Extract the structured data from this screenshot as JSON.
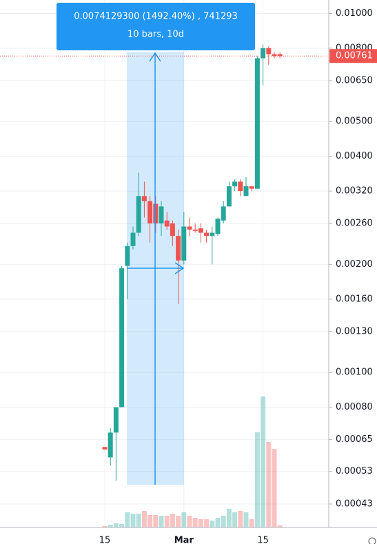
{
  "chart_data": {
    "type": "candlestick",
    "categories": [
      "15",
      null,
      null,
      null,
      null,
      null,
      null,
      null,
      null,
      null,
      null,
      null,
      null,
      null,
      "Mar",
      null,
      null,
      null,
      null,
      null,
      null,
      null,
      null,
      null,
      null,
      null,
      null,
      null,
      "15",
      null,
      null,
      null
    ],
    "open": [
      0.00062,
      0.00058,
      0.00068,
      0.0008,
      0.00198,
      0.00225,
      0.00245,
      0.0031,
      0.003,
      0.00295,
      0.0026,
      0.00265,
      0.0026,
      0.0024,
      0.00205,
      0.00255,
      0.0025,
      0.00252,
      0.00245,
      0.0024,
      0.00243,
      0.00265,
      0.0029,
      0.0033,
      0.0034,
      0.0031,
      0.0033,
      0.00325,
      0.0075,
      0.008,
      0.0077,
      0.0077
    ],
    "high": [
      0.00062,
      0.0007,
      0.0008,
      0.00198,
      0.0023,
      0.00255,
      0.0036,
      0.0034,
      0.0031,
      0.0031,
      0.003,
      0.0028,
      0.00265,
      0.0025,
      0.0028,
      0.0027,
      0.0026,
      0.0026,
      0.0025,
      0.00255,
      0.0027,
      0.003,
      0.0034,
      0.00345,
      0.00345,
      0.0035,
      0.0033,
      0.0076,
      0.0082,
      0.0081,
      0.0078,
      0.0078
    ],
    "low": [
      0.00062,
      0.00055,
      0.0005,
      0.0008,
      0.0016,
      0.0022,
      0.0024,
      0.0027,
      0.0023,
      0.00245,
      0.0024,
      0.0025,
      0.00225,
      0.00155,
      0.002,
      0.0024,
      0.00245,
      0.0023,
      0.0023,
      0.002,
      0.0024,
      0.0026,
      0.0029,
      0.0032,
      0.0031,
      0.0031,
      0.0032,
      0.00325,
      0.0063,
      0.0072,
      0.0075,
      0.0075
    ],
    "close": [
      0.00061,
      0.00068,
      0.0008,
      0.00195,
      0.00225,
      0.00245,
      0.0031,
      0.003,
      0.0026,
      0.0026,
      0.0029,
      0.00255,
      0.0024,
      0.00205,
      0.00255,
      0.0025,
      0.00248,
      0.00245,
      0.0024,
      0.00245,
      0.00268,
      0.0029,
      0.0033,
      0.0034,
      0.0032,
      0.0033,
      0.00325,
      0.0075,
      0.008,
      0.0077,
      0.00761,
      0.00761
    ],
    "volume": [
      2,
      4,
      6,
      5,
      22,
      20,
      20,
      24,
      18,
      18,
      17,
      17,
      20,
      17,
      22,
      17,
      14,
      12,
      12,
      10,
      14,
      17,
      27,
      22,
      24,
      22,
      12,
      138,
      190,
      124,
      114,
      3
    ],
    "up_color": "#26a69a",
    "down_color": "#ef5350",
    "log_scale": true,
    "grid": true,
    "ylim": [
      0.00037,
      0.0109
    ],
    "yticks": [
      {
        "value": 0.01,
        "label": "0.01000"
      },
      {
        "value": 0.008,
        "label": "0.00800"
      },
      {
        "value": 0.0065,
        "label": "0.00650"
      },
      {
        "value": 0.005,
        "label": "0.00500"
      },
      {
        "value": 0.004,
        "label": "0.00400"
      },
      {
        "value": 0.0032,
        "label": "0.00320"
      },
      {
        "value": 0.0026,
        "label": "0.00260"
      },
      {
        "value": 0.002,
        "label": "0.00200"
      },
      {
        "value": 0.0016,
        "label": "0.00160"
      },
      {
        "value": 0.0013,
        "label": "0.00130"
      },
      {
        "value": 0.001,
        "label": "0.00100"
      },
      {
        "value": 0.0008,
        "label": "0.00080"
      },
      0.00065,
      0.00053,
      0.00043
    ],
    "last_price": 0.00761,
    "measure": {
      "line1": "0.0074129300 (1492.40%) , 741293",
      "line2": "10 bars, 10d"
    }
  }
}
